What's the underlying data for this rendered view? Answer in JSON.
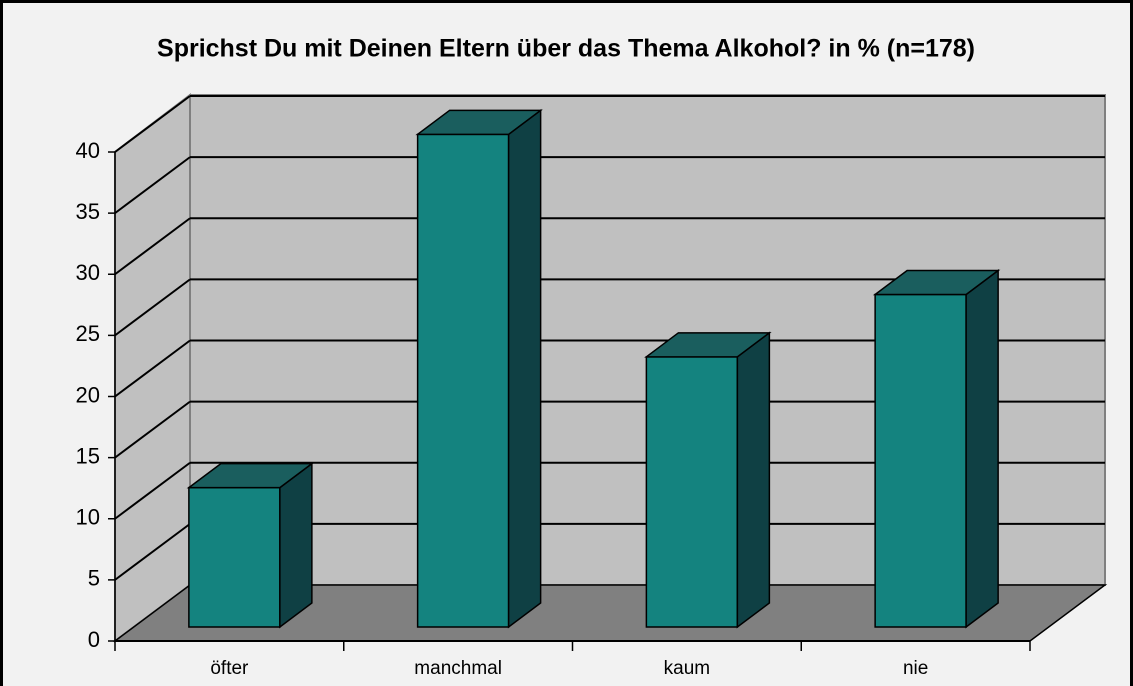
{
  "chart_data": {
    "type": "bar3d",
    "title": "Sprichst Du mit Deinen Eltern über das Thema Alkohol? in % (n=178)",
    "categories": [
      "öfter",
      "manchmal",
      "kaum",
      "nie"
    ],
    "values": [
      11.4,
      40.3,
      22.1,
      27.2
    ],
    "color": "#14837f",
    "ylim": [
      0,
      40
    ],
    "yticks": [
      0,
      5,
      10,
      15,
      20,
      25,
      30,
      35,
      40
    ],
    "grid": true
  }
}
